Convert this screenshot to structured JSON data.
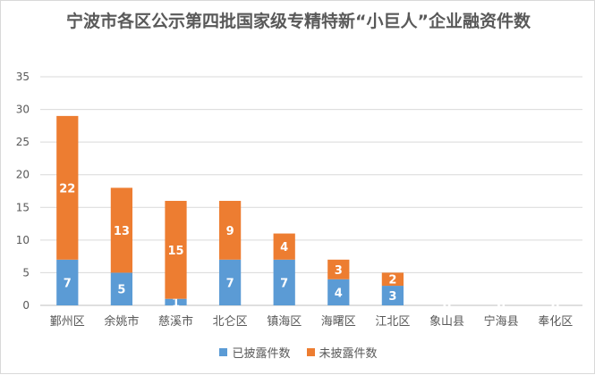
{
  "chart_data": {
    "type": "bar",
    "stacked": true,
    "title": "宁波市各区公示第四批国家级专精特新“小巨人”企业融资件数",
    "categories": [
      "鄞州区",
      "余姚市",
      "慈溪市",
      "北仑区",
      "镇海区",
      "海曙区",
      "江北区",
      "象山县",
      "宁海县",
      "奉化区"
    ],
    "series": [
      {
        "name": "已披露件数",
        "color": "#5b9bd5",
        "values": [
          7,
          5,
          1,
          7,
          7,
          4,
          3,
          0,
          0,
          0
        ]
      },
      {
        "name": "未披露件数",
        "color": "#ed7d31",
        "values": [
          22,
          13,
          15,
          9,
          4,
          3,
          2,
          0,
          0,
          0
        ]
      }
    ],
    "ylim": [
      0,
      35
    ],
    "yticks": [
      0,
      5,
      10,
      15,
      20,
      25,
      30,
      35
    ],
    "grid": true,
    "legend": "bottom",
    "xlabel": "",
    "ylabel": ""
  }
}
